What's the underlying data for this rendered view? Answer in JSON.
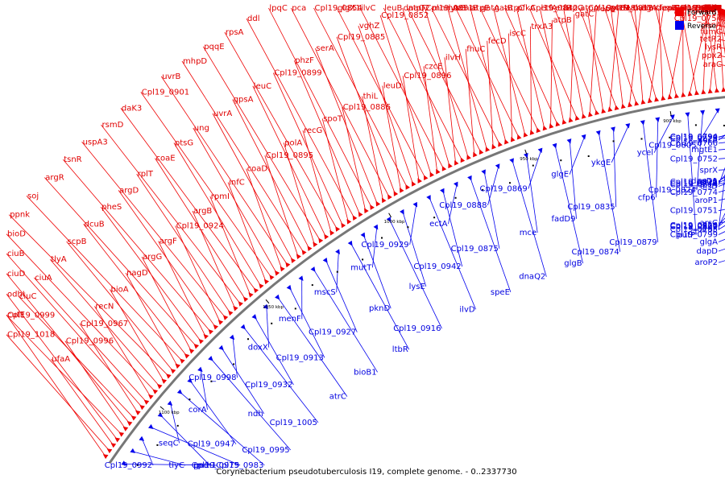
{
  "caption": "Corynebacterium pseudotuberculosis I19, complete genome. - 0..2337730",
  "legend": {
    "forward": {
      "label": "Forward",
      "color": "#ee0000"
    },
    "reverse": {
      "label": "Reverse",
      "color": "#0000ee"
    }
  },
  "ticks": [
    {
      "label": "800 kbp",
      "pos": 800
    },
    {
      "label": "850 kbp",
      "pos": 850
    },
    {
      "label": "900 kbp",
      "pos": 900
    },
    {
      "label": "950 kbp",
      "pos": 950
    },
    {
      "label": "1000 kbp",
      "pos": 1000
    },
    {
      "label": "1050 kbp",
      "pos": 1050
    },
    {
      "label": "1100 kbp",
      "pos": 1100
    }
  ],
  "forward_genes": [
    "araC",
    "greA",
    "mca",
    "ppx2",
    "glyA",
    "uppS1",
    "lysR",
    "coaA",
    "glpX",
    "tetR2",
    "tetR1",
    "ispH",
    "fumC",
    "ychF",
    "Cpl19_0739",
    "phnA",
    "xseB",
    "panE",
    "Cpl19_0754",
    "xseA",
    "Cpl19_0773",
    "Cpl19_0765",
    "Cpl19_0749",
    "Cpl19_0768",
    "Cpl19_0755",
    "mshB",
    "Cpl19_0756",
    "Cpl19_0770",
    "Cpl19_0757",
    "dapE",
    "Cpl19_0797",
    "folP",
    "Cpl19_0783",
    "fdxA",
    "Cpl19_0760",
    "glgC",
    "Cpl19_0767",
    "dapC",
    "sigE",
    "rrmA",
    "cseE",
    "Cpl19_0780",
    "tatB",
    "Cpl19_0782",
    "lipT",
    "Cpl19_0784",
    "Cpl19_0803",
    "helZ",
    "galK",
    "Cpl19_0804",
    "pspC",
    "sbcD",
    "yihR",
    "Cpl19_0820",
    "lldP",
    "Cpl19_0807",
    "marR2",
    "argS",
    "Cpl19_0808",
    "galT",
    "rho",
    "lysA",
    "prfA",
    "atpH",
    "thrA",
    "sua5",
    "atpD",
    "thrB",
    "deaD",
    "Cpl19_0812",
    "fepC",
    "mutT",
    "metE",
    "hemK",
    "Cpl19_0813",
    "ligA",
    "yrrM",
    "atpA",
    "rfe",
    "Cpl19_0818",
    "etfB",
    "fepB",
    "atpG",
    "Cpl19_0842",
    "gatC",
    "etfA",
    "atpC",
    "atpB",
    "pfkA",
    "gatA",
    "trxA3",
    "gatB",
    "emrB",
    "iscC",
    "atpE",
    "mnmA",
    "fecD",
    "lysG",
    "atpF",
    "fhuC",
    "Cpl19_0851",
    "leuB",
    "ilvH",
    "dnaQ2",
    "ilvC",
    "czcE",
    "Cpl19_0852",
    "glgX1",
    "Cpl19_0896",
    "vghZ",
    "Cpl19_0854",
    "leuD",
    "Cpl19_0885",
    "pca",
    "thiL",
    "serA",
    "lpqC",
    "Cpl19_0886",
    "phzF",
    "ddl",
    "spoT",
    "Cpl19_0899",
    "rpsA",
    "recG",
    "leuC",
    "pqqE",
    "polA",
    "gpsA",
    "mhpD",
    "Cpl19_0895",
    "uvrA",
    "uvrB",
    "coaD",
    "ung",
    "Cpl19_0901",
    "infC",
    "ptsG",
    "daK3",
    "rpmI",
    "coaE",
    "rsmD",
    "argB",
    "rplT",
    "uspA3",
    "Cpl19_0924",
    "argD",
    "tsnR",
    "argF",
    "pheS",
    "argR",
    "argG",
    "dcuB",
    "soj",
    "nagD",
    "scpB",
    "ppnk",
    "bioA",
    "tlyA",
    "bioD",
    "recN",
    "ciuA",
    "ciuB",
    "Cpl19_0967",
    "ciuC",
    "ciuD",
    "Cpl19_0996",
    "Cpl19_0999",
    "odhI",
    "ufaA",
    "Cpl19_1018",
    "cutE"
  ],
  "reverse_genes": [
    "Cpl19_0744",
    "arsC",
    "aroP2",
    "sprX",
    "Cpl19_0751",
    "dapD",
    "Cpl19_0752",
    "aroP1",
    "glgA",
    "mgtE1",
    "Cpl19_0774",
    "Cpl19_0799",
    "Cpl19_0766",
    "alsD",
    "Cpl19_0795",
    "Cpl19_0828",
    "scrB",
    "Cpl19_0827",
    "Cpl19_0794",
    "dapD1",
    "Cpl19_0826",
    "Cpl19_0790",
    "Cpl19_0815",
    "Cpl19_0800",
    "sucA",
    "Cpl19_0814",
    "aroE",
    "Cpl19_0805",
    "Cpl19_0824",
    "putP",
    "ycel",
    "cfp6",
    "Cpl19_0879",
    "ykgE",
    "Cpl19_0835",
    "Cpl19_0874",
    "glgE",
    "fadD9",
    "glgB",
    "Cpl19_0869",
    "mce",
    "dnaQ2",
    "Cpl19_0888",
    "Cpl19_0875",
    "speE",
    "ectA",
    "Cpl19_0942",
    "ilvD",
    "Cpl19_0929",
    "lysE",
    "Cpl19_0916",
    "mutT",
    "pknD",
    "ltbR",
    "mscS",
    "Cpl19_0927",
    "bioB1",
    "menF",
    "Cpl19_0913",
    "atrC",
    "doxX",
    "Cpl19_0932",
    "Cpl19_1005",
    "Cpl19_0998",
    "ndh",
    "Cpl19_0995",
    "corA",
    "Cpl19_0947",
    "Cpl19_0983",
    "seqC",
    "gnd",
    "Cpl19_0975",
    "Cpl19_0992",
    "tlyC",
    "ppm1"
  ]
}
